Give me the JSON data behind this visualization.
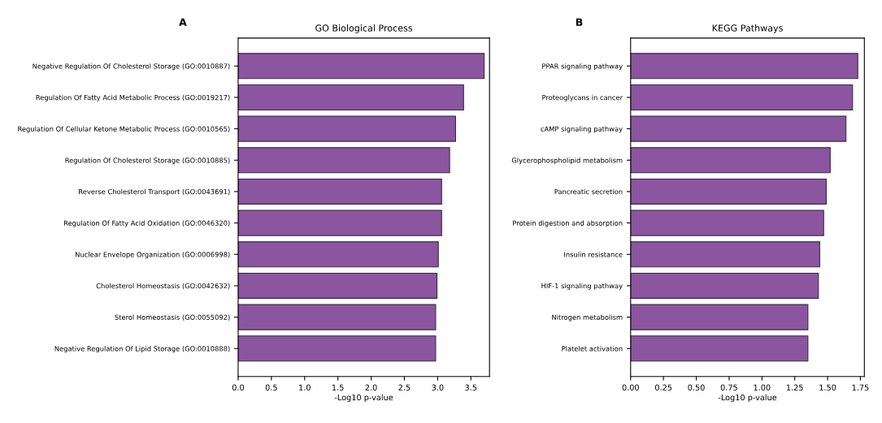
{
  "chart_data": [
    {
      "type": "bar",
      "orientation": "horizontal",
      "title": "GO Biological Process",
      "xlabel": "-Log10 p-value",
      "annotations": [
        "A"
      ],
      "color": "#8b55a0",
      "categories": [
        "Negative Regulation Of Cholesterol Storage (GO:0010887)",
        "Regulation Of Fatty Acid Metabolic Process (GO:0019217)",
        "Regulation Of Cellular Ketone Metabolic Process (GO:0010565)",
        "Regulation Of Cholesterol Storage (GO:0010885)",
        "Reverse Cholesterol Transport (GO:0043691)",
        "Regulation Of Fatty Acid Oxidation (GO:0046320)",
        "Nuclear Envelope Organization (GO:0006998)",
        "Cholesterol Homeostasis (GO:0042632)",
        "Sterol Homeostasis (GO:0055092)",
        "Negative Regulation Of Lipid Storage (GO:0010888)"
      ],
      "values": [
        3.7,
        3.39,
        3.27,
        3.18,
        3.06,
        3.06,
        3.01,
        2.99,
        2.97,
        2.97
      ],
      "xlim": [
        0,
        3.78
      ],
      "xticks": [
        {
          "value": 0,
          "label": "0.0"
        },
        {
          "value": 0.5,
          "label": "0.5"
        },
        {
          "value": 1,
          "label": "1.0"
        },
        {
          "value": 1.5,
          "label": "1.5"
        },
        {
          "value": 2,
          "label": "2.0"
        },
        {
          "value": 2.5,
          "label": "2.5"
        },
        {
          "value": 3,
          "label": "3.0"
        },
        {
          "value": 3.5,
          "label": "3.5"
        }
      ]
    },
    {
      "type": "bar",
      "orientation": "horizontal",
      "title": "KEGG Pathways",
      "xlabel": "-Log10 p-value",
      "annotations": [
        "B"
      ],
      "color": "#8b55a0",
      "categories": [
        "PPAR signaling pathway",
        "Proteoglycans in cancer",
        "cAMP signaling pathway",
        "Glycerophospholipid metabolism",
        "Pancreatic secretion",
        "Protein digestion and absorption",
        "Insulin resistance",
        "HIF-1 signaling pathway",
        "Nitrogen metabolism",
        "Platelet activation"
      ],
      "values": [
        1.73,
        1.69,
        1.64,
        1.52,
        1.49,
        1.47,
        1.44,
        1.43,
        1.35,
        1.35
      ],
      "xlim": [
        0,
        1.78
      ],
      "xticks": [
        {
          "value": 0,
          "label": "0.00"
        },
        {
          "value": 0.25,
          "label": "0.25"
        },
        {
          "value": 0.5,
          "label": "0.50"
        },
        {
          "value": 0.75,
          "label": "0.75"
        },
        {
          "value": 1,
          "label": "1.00"
        },
        {
          "value": 1.25,
          "label": "1.25"
        },
        {
          "value": 1.5,
          "label": "1.50"
        },
        {
          "value": 1.75,
          "label": "1.75"
        }
      ]
    }
  ]
}
